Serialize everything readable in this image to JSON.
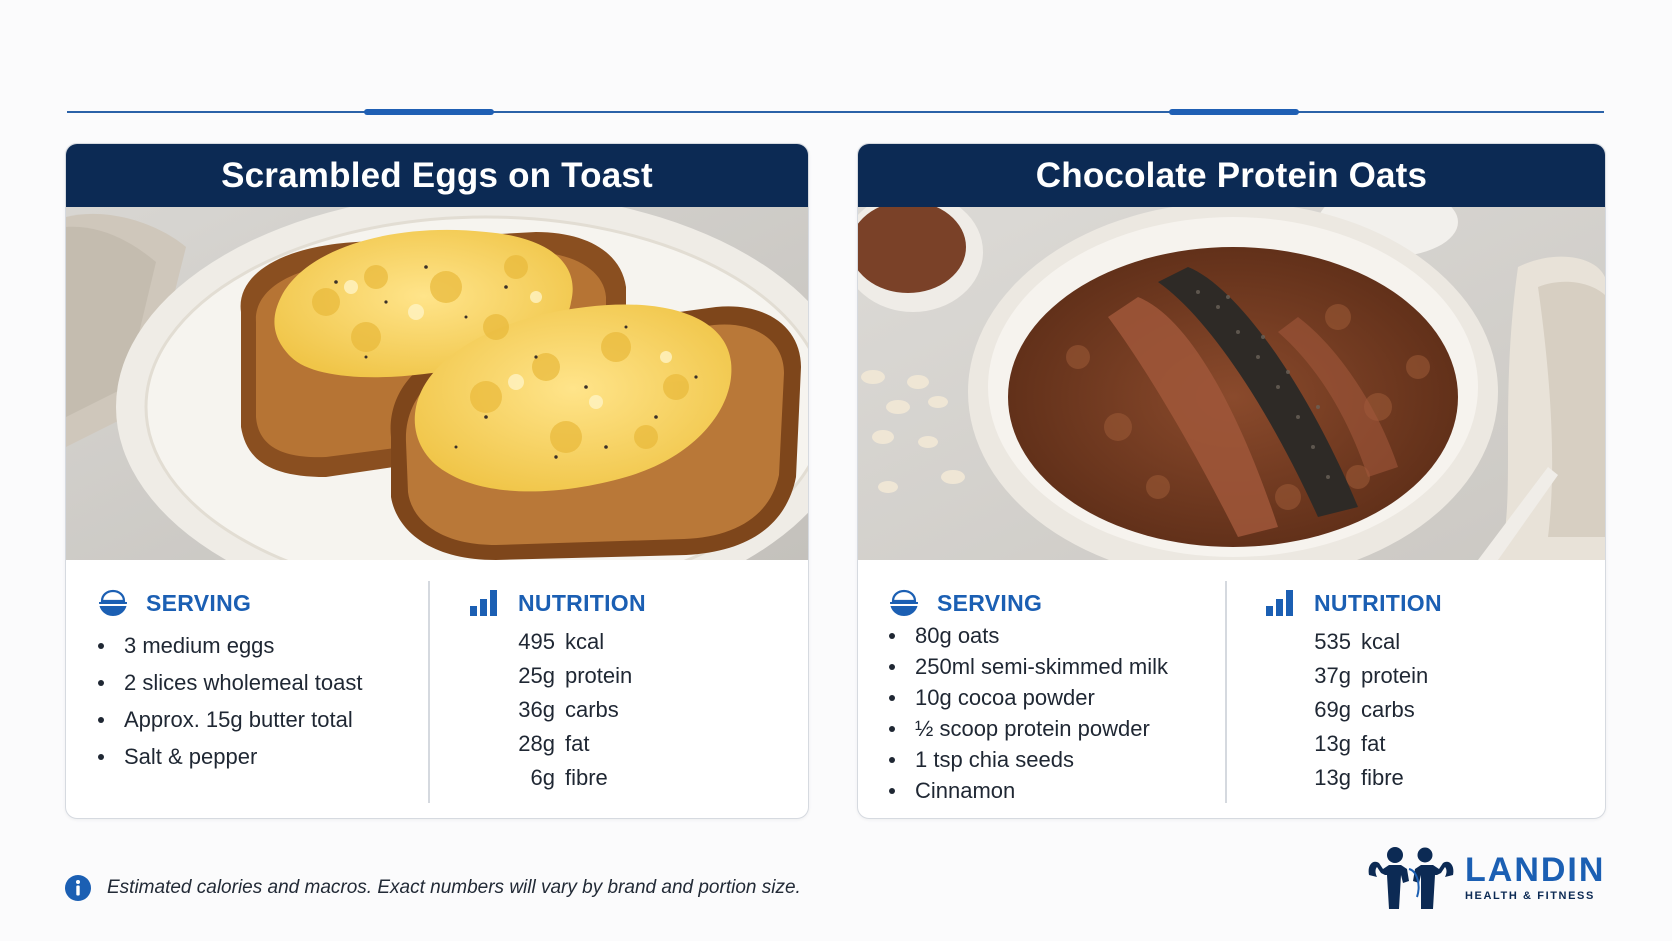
{
  "cards": [
    {
      "title": "Scrambled Eggs on Toast",
      "photo_icon": "scrambled-eggs-on-toast-photo",
      "serving": {
        "label": "SERVING",
        "icon": "bowl-icon",
        "items": [
          "3 medium eggs",
          "2 slices wholemeal toast",
          "Approx. 15g butter total",
          "Salt & pepper"
        ]
      },
      "nutrition": {
        "label": "NUTRITION",
        "icon": "bar-chart-icon",
        "rows": [
          {
            "value": "495",
            "unit": "kcal"
          },
          {
            "value": "25g",
            "unit": "protein"
          },
          {
            "value": "36g",
            "unit": "carbs"
          },
          {
            "value": "28g",
            "unit": "fat"
          },
          {
            "value": "6g",
            "unit": "fibre"
          }
        ]
      }
    },
    {
      "title": "Chocolate Protein Oats",
      "photo_icon": "chocolate-protein-oats-photo",
      "serving": {
        "label": "SERVING",
        "icon": "bowl-icon",
        "items": [
          "80g oats",
          "250ml semi-skimmed milk",
          "10g cocoa powder",
          "½ scoop protein powder",
          "1 tsp chia seeds",
          "Cinnamon"
        ]
      },
      "nutrition": {
        "label": "NUTRITION",
        "icon": "bar-chart-icon",
        "rows": [
          {
            "value": "535",
            "unit": "kcal"
          },
          {
            "value": "37g",
            "unit": "protein"
          },
          {
            "value": "69g",
            "unit": "carbs"
          },
          {
            "value": "13g",
            "unit": "fat"
          },
          {
            "value": "13g",
            "unit": "fibre"
          }
        ]
      }
    }
  ],
  "footer": {
    "note_icon": "info-icon",
    "note": "Estimated calories and macros. Exact numbers will vary by brand and portion size."
  },
  "logo": {
    "icon": "flexing-couple-logo",
    "name": "LANDIN",
    "tagline": "HEALTH & FITNESS"
  },
  "colors": {
    "navy": "#0c2a54",
    "accent_blue": "#1b5fb3",
    "rule_blue": "#2b62a8"
  }
}
